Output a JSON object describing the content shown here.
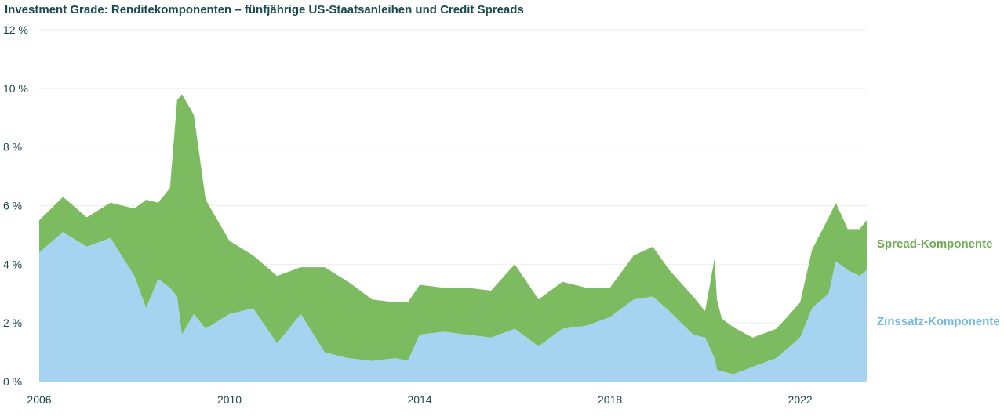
{
  "chart_data": {
    "type": "area",
    "title": "Investment Grade: Renditekomponenten – fünfjährige US-Staatsanleihen und Credit Spreads",
    "y_ticks": [
      "0 %",
      "2 %",
      "4 %",
      "6 %",
      "8 %",
      "10 %",
      "12 %"
    ],
    "x_ticks": [
      "2006",
      "2010",
      "2014",
      "2018",
      "2022"
    ],
    "ylim": [
      0,
      12
    ],
    "xlim": [
      2006,
      2023.4
    ],
    "grid": true,
    "stacked": true,
    "x": [
      2006.0,
      2006.5,
      2007.0,
      2007.5,
      2008.0,
      2008.25,
      2008.5,
      2008.75,
      2008.9,
      2009.0,
      2009.25,
      2009.5,
      2010.0,
      2010.5,
      2011.0,
      2011.5,
      2012.0,
      2012.5,
      2013.0,
      2013.5,
      2013.75,
      2014.0,
      2014.5,
      2015.0,
      2015.5,
      2016.0,
      2016.5,
      2017.0,
      2017.5,
      2018.0,
      2018.5,
      2018.9,
      2019.25,
      2019.75,
      2020.0,
      2020.2,
      2020.25,
      2020.35,
      2020.6,
      2021.0,
      2021.5,
      2022.0,
      2022.25,
      2022.6,
      2022.75,
      2023.0,
      2023.25,
      2023.4
    ],
    "series": [
      {
        "name": "Zinssatz-Komponente",
        "color": "#a6d3ef",
        "values": [
          4.4,
          5.1,
          4.6,
          4.9,
          3.6,
          2.5,
          3.5,
          3.2,
          2.9,
          1.6,
          2.3,
          1.8,
          2.3,
          2.5,
          1.3,
          2.3,
          1.0,
          0.8,
          0.7,
          0.8,
          0.7,
          1.6,
          1.7,
          1.6,
          1.5,
          1.8,
          1.2,
          1.8,
          1.9,
          2.2,
          2.8,
          2.9,
          2.4,
          1.6,
          1.5,
          0.8,
          0.4,
          0.35,
          0.25,
          0.5,
          0.8,
          1.5,
          2.5,
          3.0,
          4.1,
          3.8,
          3.6,
          3.8
        ]
      },
      {
        "name": "Spread-Komponente",
        "color": "#7dbb61",
        "values": [
          1.1,
          1.2,
          1.0,
          1.2,
          2.3,
          3.7,
          2.6,
          3.4,
          6.7,
          8.2,
          6.8,
          4.4,
          2.5,
          1.8,
          2.3,
          1.6,
          2.9,
          2.6,
          2.1,
          1.9,
          2.0,
          1.7,
          1.5,
          1.6,
          1.6,
          2.2,
          1.6,
          1.6,
          1.3,
          1.0,
          1.5,
          1.7,
          1.4,
          1.3,
          0.9,
          3.4,
          2.4,
          1.8,
          1.6,
          1.0,
          1.0,
          1.2,
          2.0,
          2.6,
          2.0,
          1.4,
          1.6,
          1.7
        ]
      }
    ],
    "legend_labels": [
      "Spread-Komponente",
      "Zinssatz-Komponente"
    ]
  }
}
